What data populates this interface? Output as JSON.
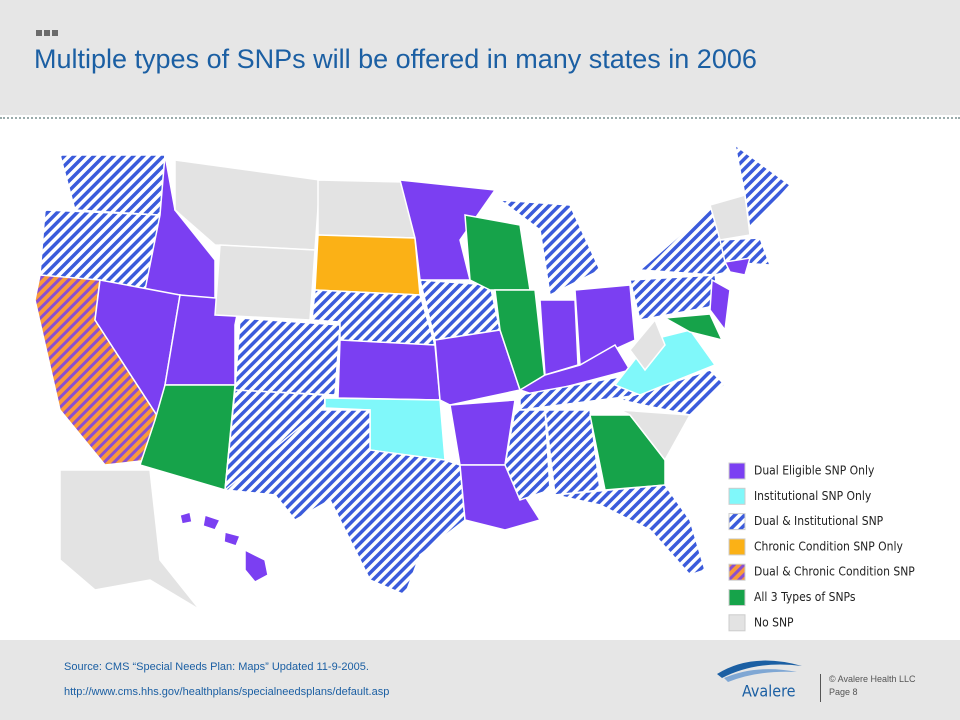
{
  "header": {
    "title": "Multiple types of SNPs will be offered in many states in 2006"
  },
  "legend": [
    "Dual Eligible SNP Only",
    "Institutional SNP Only",
    "Dual & Institutional SNP",
    "Chronic Condition SNP Only",
    "Dual & Chronic Condition SNP",
    "All 3 Types of SNPs",
    "No SNP"
  ],
  "footer": {
    "source": "Source:  CMS “Special Needs Plan:  Maps”  Updated 11-9-2005.",
    "url": "http://www.cms.hhs.gov/healthplans/specialneedsplans/default.asp",
    "logo": "Avalere",
    "copyright": "© Avalere Health LLC",
    "page": "Page 8"
  }
}
